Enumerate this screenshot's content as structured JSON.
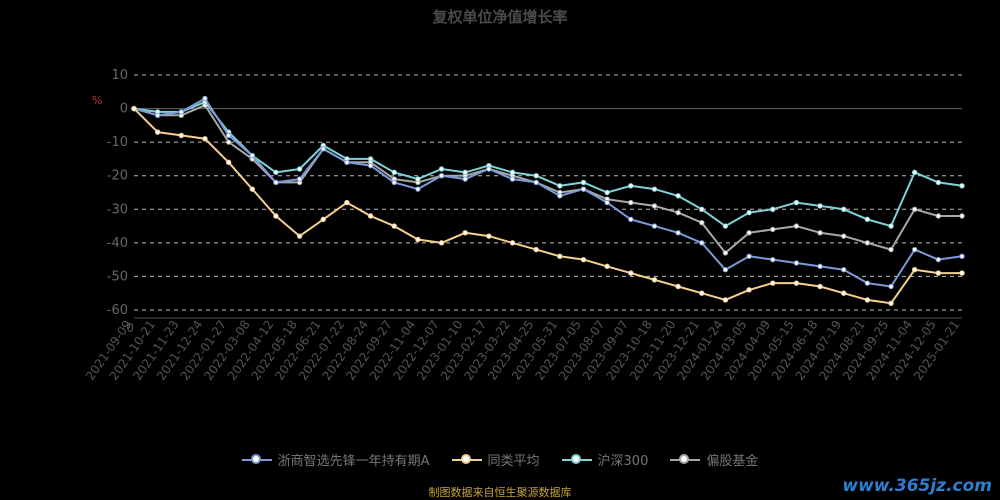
{
  "title": "复权单位净值增长率",
  "source_note": "制图数据来自恒生聚源数据库",
  "watermark": "www.365jz.com",
  "chart_data": {
    "type": "line",
    "y_unit_label": "%",
    "ylim": [
      -60,
      10
    ],
    "yticks": [
      10,
      0,
      -10,
      -20,
      -30,
      -40,
      -50,
      -60
    ],
    "x": [
      "2021-09-09",
      "2021-10-21",
      "2021-11-23",
      "2021-12-24",
      "2022-01-27",
      "2022-03-08",
      "2022-04-12",
      "2022-05-18",
      "2022-06-21",
      "2022-07-22",
      "2022-08-24",
      "2022-09-27",
      "2022-11-04",
      "2022-12-07",
      "2023-01-10",
      "2023-02-17",
      "2023-03-22",
      "2023-04-25",
      "2023-05-31",
      "2023-07-05",
      "2023-08-07",
      "2023-09-07",
      "2023-10-18",
      "2023-11-20",
      "2023-12-21",
      "2024-01-24",
      "2024-03-05",
      "2024-04-09",
      "2024-05-15",
      "2024-06-18",
      "2024-07-19",
      "2024-08-21",
      "2024-09-25",
      "2024-11-04",
      "2024-12-05",
      "2025-01-21"
    ],
    "grid": true,
    "legend_position": "bottom",
    "series": [
      {
        "name": "浙商智选先锋一年持有期A",
        "color": "#7b9bd8",
        "values": [
          0,
          -2,
          -1,
          3,
          -8,
          -14,
          -22,
          -21,
          -12,
          -16,
          -17,
          -22,
          -24,
          -20,
          -21,
          -18,
          -21,
          -22,
          -26,
          -24,
          -28,
          -33,
          -35,
          -37,
          -40,
          -48,
          -44,
          -45,
          -46,
          -47,
          -48,
          -52,
          -53,
          -42,
          -45,
          -44
        ]
      },
      {
        "name": "同类平均",
        "color": "#f5cf8c",
        "values": [
          0,
          -7,
          -8,
          -9,
          -16,
          -24,
          -32,
          -38,
          -33,
          -28,
          -32,
          -35,
          -39,
          -40,
          -37,
          -38,
          -40,
          -42,
          -44,
          -45,
          -47,
          -49,
          -51,
          -53,
          -55,
          -57,
          -54,
          -52,
          -52,
          -53,
          -55,
          -57,
          -58,
          -48,
          -49,
          -49
        ]
      },
      {
        "name": "沪深300",
        "color": "#7fd3d6",
        "values": [
          0,
          -1,
          -1,
          2,
          -7,
          -14,
          -19,
          -18,
          -11,
          -15,
          -15,
          -19,
          -21,
          -18,
          -19,
          -17,
          -19,
          -20,
          -23,
          -22,
          -25,
          -23,
          -24,
          -26,
          -30,
          -35,
          -31,
          -30,
          -28,
          -29,
          -30,
          -33,
          -35,
          -19,
          -22,
          -23
        ]
      },
      {
        "name": "偏股基金",
        "color": "#a8a8a8",
        "values": [
          0,
          -2,
          -2,
          1,
          -10,
          -15,
          -22,
          -22,
          -12,
          -16,
          -16,
          -21,
          -22,
          -20,
          -20,
          -18,
          -20,
          -22,
          -25,
          -24,
          -27,
          -28,
          -29,
          -31,
          -34,
          -43,
          -37,
          -36,
          -35,
          -37,
          -38,
          -40,
          -42,
          -30,
          -32,
          -32
        ]
      }
    ]
  },
  "legend": {
    "items": [
      {
        "label": "浙商智选先锋一年持有期A",
        "color": "#7b9bd8"
      },
      {
        "label": "同类平均",
        "color": "#f5cf8c"
      },
      {
        "label": "沪深300",
        "color": "#7fd3d6"
      },
      {
        "label": "偏股基金",
        "color": "#a8a8a8"
      }
    ]
  }
}
